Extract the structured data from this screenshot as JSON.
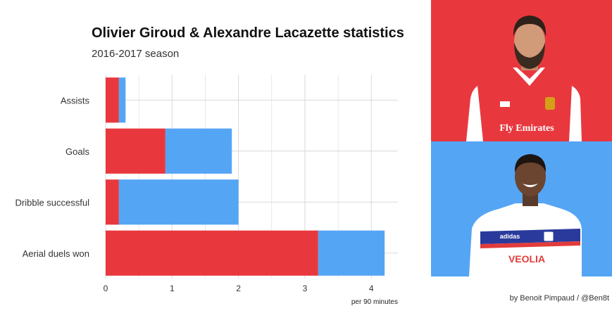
{
  "title": "Olivier Giroud & Alexandre Lacazette statistics",
  "subtitle": "2016-2017 season",
  "credit": "by Benoit Pimpaud / @Ben8t",
  "colors": {
    "giroud": "#e8383e",
    "lacazette": "#55a5f5",
    "grid": "#d9d9d9"
  },
  "panels": {
    "top": {
      "background": "#e8383e",
      "shirt_color": "#e8383e",
      "shirt_text": "Fly Emirates"
    },
    "bottom": {
      "background": "#55a5f5",
      "shirt_color": "#ffffff",
      "shirt_text": "VEOLIA",
      "shirt_brand": "adidas"
    }
  },
  "chart_data": {
    "type": "bar",
    "orientation": "horizontal",
    "stacked": true,
    "categories": [
      "Assists",
      "Goals",
      "Dribble successful",
      "Aerial duels won"
    ],
    "series": [
      {
        "color": "#e8383e",
        "values": [
          0.2,
          0.9,
          0.2,
          3.2
        ]
      },
      {
        "color": "#55a5f5",
        "values": [
          0.1,
          1.0,
          1.8,
          1.0
        ]
      }
    ],
    "xlabel": "per 90 minutes",
    "xlim": [
      0,
      4.4
    ],
    "xticks": [
      0,
      1,
      2,
      3,
      4
    ],
    "grid": true,
    "legend": "none"
  }
}
